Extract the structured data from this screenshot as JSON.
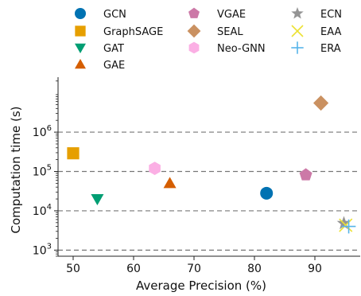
{
  "chart_data": {
    "type": "scatter",
    "title": "",
    "xlabel": "Average Precision (%)",
    "ylabel": "Computation time (s)",
    "y_scale": "log",
    "xlim": [
      47.5,
      97.5
    ],
    "ylim": [
      700,
      25000000
    ],
    "x_ticks": [
      {
        "value": 50,
        "label": "50"
      },
      {
        "value": 60,
        "label": "60"
      },
      {
        "value": 70,
        "label": "70"
      },
      {
        "value": 80,
        "label": "80"
      },
      {
        "value": 90,
        "label": "90"
      }
    ],
    "y_ticks": [
      {
        "value": 1000,
        "base": "10",
        "exp": "3"
      },
      {
        "value": 10000,
        "base": "10",
        "exp": "4"
      },
      {
        "value": 100000,
        "base": "10",
        "exp": "5"
      },
      {
        "value": 1000000,
        "base": "10",
        "exp": "6"
      }
    ],
    "grid": "horizontal dashed at major y ticks",
    "legend_position": "top, above plot, 3 columns",
    "series": [
      {
        "name": "GCN",
        "marker": "circle",
        "color": "#0072B2",
        "x": 82.0,
        "y": 28000
      },
      {
        "name": "GraphSAGE",
        "marker": "square",
        "color": "#E69F00",
        "x": 50.0,
        "y": 290000
      },
      {
        "name": "GAT",
        "marker": "triangle-down",
        "color": "#009E73",
        "x": 54.0,
        "y": 20000
      },
      {
        "name": "GAE",
        "marker": "triangle-up",
        "color": "#D55E00",
        "x": 66.0,
        "y": 50000
      },
      {
        "name": "VGAE",
        "marker": "pentagon",
        "color": "#CC79A7",
        "x": 88.5,
        "y": 82000
      },
      {
        "name": "SEAL",
        "marker": "diamond",
        "color": "#CA9161",
        "x": 91.0,
        "y": 5500000
      },
      {
        "name": "Neo-GNN",
        "marker": "hexagon",
        "color": "#FBAFE4",
        "x": 63.5,
        "y": 120000
      },
      {
        "name": "ECN",
        "marker": "star",
        "color": "#949494",
        "x": 94.8,
        "y": 4800
      },
      {
        "name": "EAA",
        "marker": "x",
        "color": "#ECE133",
        "x": 95.1,
        "y": 4300
      },
      {
        "name": "ERA",
        "marker": "plus",
        "color": "#56B4E9",
        "x": 95.6,
        "y": 4000
      }
    ]
  }
}
